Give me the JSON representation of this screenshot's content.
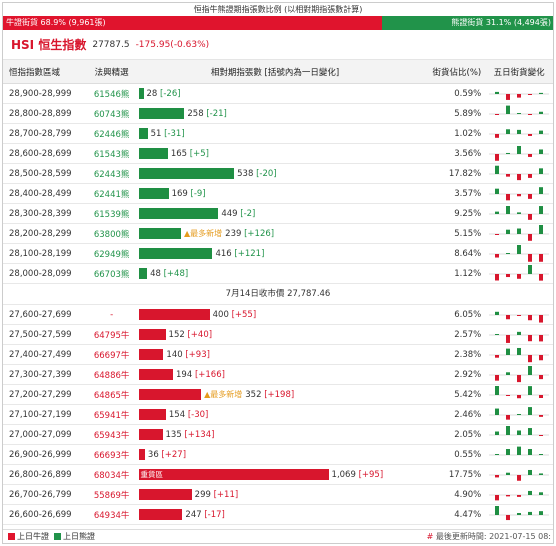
{
  "title": "恒指牛熊證期指張數比例 (以相對期指張數計算)",
  "ratio": {
    "bull_label": "牛證街貨 68.9% (9,961張)",
    "bull_pct": 68.9,
    "bear_label": "熊證街貨 31.1% (4,494張)",
    "bear_pct": 31.1
  },
  "hsi": {
    "name": "HSI 恒生指數",
    "price": "27787.5",
    "change": "-175.95(-0.63%)"
  },
  "headers": {
    "range": "恒指指數區域",
    "issuer": "法興精選",
    "qty": "相對期指張數 [括號內為一日變化]",
    "pct": "街貨佔比(%)",
    "spark": "五日街貨變化"
  },
  "bear_rows": [
    {
      "range": "28,900-28,999",
      "code": "61546熊",
      "qty": "28",
      "delta": "[-26]",
      "pct": "0.59%"
    },
    {
      "range": "28,800-28,899",
      "code": "60743熊",
      "qty": "258",
      "delta": "[-21]",
      "pct": "5.89%"
    },
    {
      "range": "28,700-28,799",
      "code": "62446熊",
      "qty": "51",
      "delta": "[-31]",
      "pct": "1.02%"
    },
    {
      "range": "28,600-28,699",
      "code": "61543熊",
      "qty": "165",
      "delta": "[+5]",
      "pct": "3.56%"
    },
    {
      "range": "28,500-28,599",
      "code": "62443熊",
      "qty": "538",
      "delta": "[-20]",
      "pct": "17.82%"
    },
    {
      "range": "28,400-28,499",
      "code": "62441熊",
      "qty": "169",
      "delta": "[-9]",
      "pct": "3.57%"
    },
    {
      "range": "28,300-28,399",
      "code": "61539熊",
      "qty": "449",
      "delta": "[-2]",
      "pct": "9.25%"
    },
    {
      "range": "28,200-28,299",
      "code": "63800熊",
      "qty": "239",
      "delta": "[+126]",
      "pct": "5.15%",
      "mark": "▲最多新增"
    },
    {
      "range": "28,100-28,199",
      "code": "62949熊",
      "qty": "416",
      "delta": "[+121]",
      "pct": "8.64%"
    },
    {
      "range": "28,000-28,099",
      "code": "66703熊",
      "qty": "48",
      "delta": "[+48]",
      "pct": "1.12%"
    }
  ],
  "close_label": "7月14日收市價 27,787.46",
  "bull_rows": [
    {
      "range": "27,600-27,699",
      "code": "-",
      "qty": "400",
      "delta": "[+55]",
      "pct": "6.05%"
    },
    {
      "range": "27,500-27,599",
      "code": "64795牛",
      "qty": "152",
      "delta": "[+40]",
      "pct": "2.57%"
    },
    {
      "range": "27,400-27,499",
      "code": "66697牛",
      "qty": "140",
      "delta": "[+93]",
      "pct": "2.38%"
    },
    {
      "range": "27,300-27,399",
      "code": "64886牛",
      "qty": "194",
      "delta": "[+166]",
      "pct": "2.92%"
    },
    {
      "range": "27,200-27,299",
      "code": "64865牛",
      "qty": "352",
      "delta": "[+198]",
      "pct": "5.42%",
      "mark": "▲最多新增"
    },
    {
      "range": "27,100-27,199",
      "code": "65941牛",
      "qty": "154",
      "delta": "[-30]",
      "pct": "2.46%"
    },
    {
      "range": "27,000-27,099",
      "code": "65943牛",
      "qty": "135",
      "delta": "[+134]",
      "pct": "2.05%"
    },
    {
      "range": "26,900-26,999",
      "code": "66693牛",
      "qty": "36",
      "delta": "[+27]",
      "pct": "0.55%"
    },
    {
      "range": "26,800-26,899",
      "code": "68034牛",
      "qty": "1,069",
      "delta": "[+95]",
      "pct": "17.75%",
      "tag": "重貨區"
    },
    {
      "range": "26,700-26,799",
      "code": "55869牛",
      "qty": "299",
      "delta": "[+11]",
      "pct": "4.90%"
    },
    {
      "range": "26,600-26,699",
      "code": "64934牛",
      "qty": "247",
      "delta": "[-17]",
      "pct": "4.47%"
    }
  ],
  "footer": {
    "bull_legend": "上日牛證",
    "bear_legend": "上日熊證",
    "updated": "最後更新時間: 2021-07-15 08:"
  },
  "colors": {
    "bull": "#d8162d",
    "bear": "#1f8f43",
    "accent": "#e59b1d"
  }
}
